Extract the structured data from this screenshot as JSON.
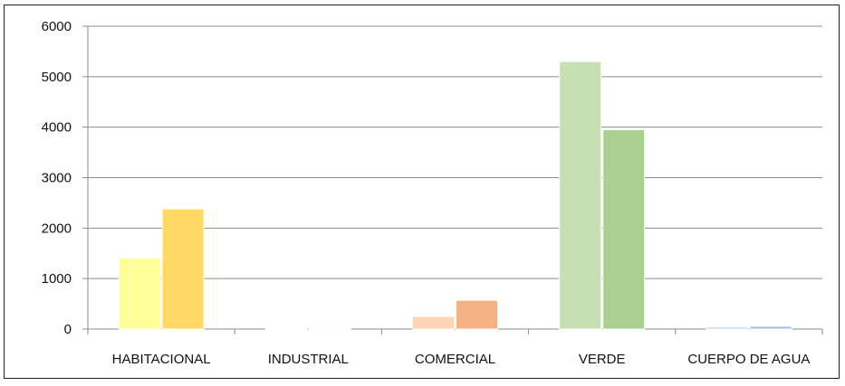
{
  "chart_data": {
    "type": "bar",
    "title": "",
    "xlabel": "",
    "ylabel": "",
    "categories": [
      "HABITACIONAL",
      "INDUSTRIAL",
      "COMERCIAL",
      "VERDE",
      "CUERPO DE AGUA"
    ],
    "series": [
      {
        "values": [
          1410,
          15,
          250,
          5300,
          40
        ]
      },
      {
        "values": [
          2380,
          20,
          570,
          3950,
          55
        ]
      }
    ],
    "bar_colors": [
      [
        "#ffff99",
        "#ffd966"
      ],
      [
        "#dbe5f1",
        "#dbe5f1"
      ],
      [
        "#fcd5b4",
        "#f4b183"
      ],
      [
        "#c6e0b4",
        "#a9d08e"
      ],
      [
        "#bdd7ee",
        "#9dc3e6"
      ]
    ],
    "ylim": [
      0,
      6000
    ],
    "yticks": [
      0,
      1000,
      2000,
      3000,
      4000,
      5000,
      6000
    ],
    "grid": true,
    "legend": "none"
  }
}
